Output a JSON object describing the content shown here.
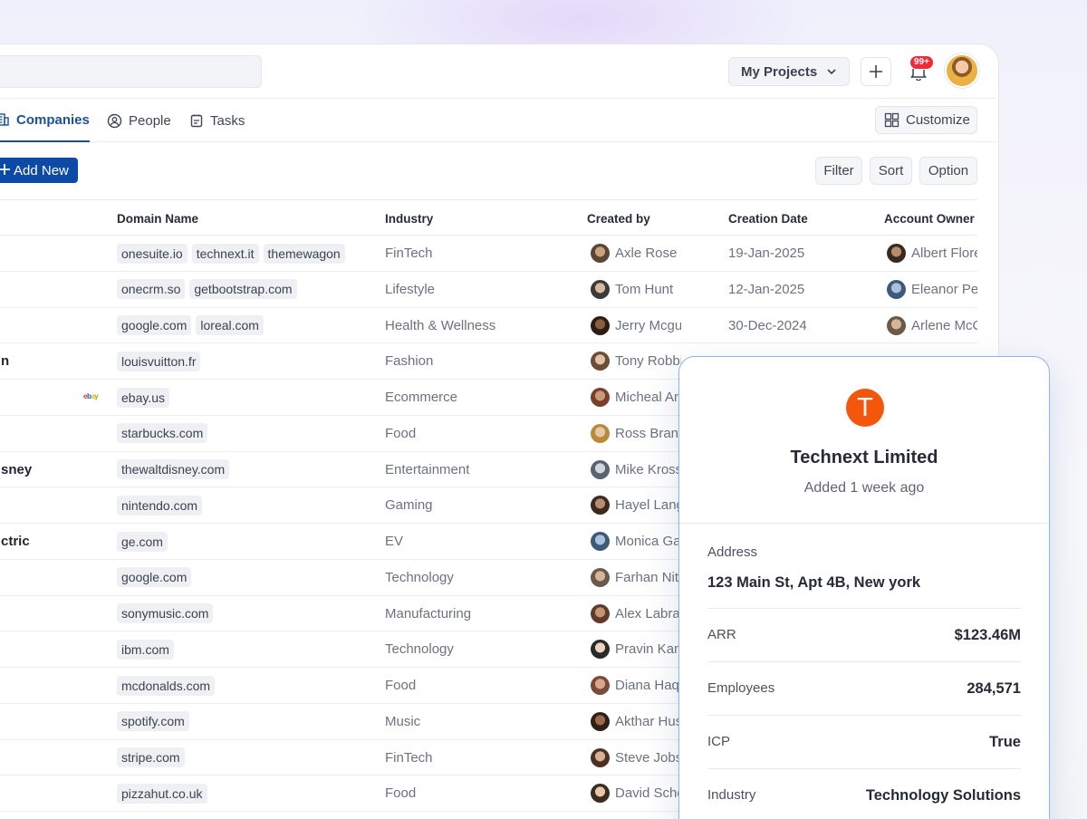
{
  "header": {
    "project_selector": "My Projects",
    "notification_count": "99+"
  },
  "tabs": [
    {
      "label": "Companies",
      "icon": "building-icon",
      "active": true
    },
    {
      "label": "People",
      "icon": "user-circle-icon",
      "active": false
    },
    {
      "label": "Tasks",
      "icon": "clipboard-icon",
      "active": false
    }
  ],
  "customize_label": "Customize",
  "add_new_label": "Add New",
  "toolbar": {
    "filter": "Filter",
    "sort": "Sort",
    "option": "Option"
  },
  "columns": {
    "domain": "Domain Name",
    "industry": "Industry",
    "created_by": "Created by",
    "creation_date": "Creation Date",
    "account_owner": "Account Owner"
  },
  "rows": [
    {
      "name": "",
      "domains": [
        "onesuite.io",
        "technext.it",
        "themewagon"
      ],
      "industry": "FinTech",
      "created_by": "Axle Rose",
      "date": "19-Jan-2025",
      "owner": "Albert Flore"
    },
    {
      "name": "",
      "domains": [
        "onecrm.so",
        "getbootstrap.com"
      ],
      "industry": "Lifestyle",
      "created_by": "Tom Hunt",
      "date": "12-Jan-2025",
      "owner": "Eleanor Per"
    },
    {
      "name": "",
      "domains": [
        "google.com",
        "loreal.com"
      ],
      "industry": "Health & Wellness",
      "created_by": "Jerry Mcguire",
      "date": "30-Dec-2024",
      "owner": "Arlene McC"
    },
    {
      "name": "n",
      "domains": [
        "louisvuitton.fr"
      ],
      "industry": "Fashion",
      "created_by": "Tony Robbins",
      "date": "",
      "owner": ""
    },
    {
      "name": "",
      "domains": [
        "ebay.us"
      ],
      "industry": "Ecommerce",
      "created_by": "Micheal An",
      "date": "",
      "owner": ""
    },
    {
      "name": "",
      "domains": [
        "starbucks.com"
      ],
      "industry": "Food",
      "created_by": "Ross Brand",
      "date": "",
      "owner": ""
    },
    {
      "name": "sney",
      "domains": [
        "thewaltdisney.com"
      ],
      "industry": "Entertainment",
      "created_by": "Mike Kross",
      "date": "",
      "owner": ""
    },
    {
      "name": "",
      "domains": [
        "nintendo.com"
      ],
      "industry": "Gaming",
      "created_by": "Hayel Lang",
      "date": "",
      "owner": ""
    },
    {
      "name": "ctric",
      "domains": [
        "ge.com"
      ],
      "industry": "EV",
      "created_by": "Monica Ga",
      "date": "",
      "owner": ""
    },
    {
      "name": "",
      "domains": [
        "google.com"
      ],
      "industry": "Technology",
      "created_by": "Farhan Nitr",
      "date": "",
      "owner": ""
    },
    {
      "name": "",
      "domains": [
        "sonymusic.com"
      ],
      "industry": "Manufacturing",
      "created_by": "Alex Labra",
      "date": "",
      "owner": ""
    },
    {
      "name": "",
      "domains": [
        "ibm.com"
      ],
      "industry": "Technology",
      "created_by": "Pravin Kam",
      "date": "",
      "owner": ""
    },
    {
      "name": "",
      "domains": [
        "mcdonalds.com"
      ],
      "industry": "Food",
      "created_by": "Diana Haqu",
      "date": "",
      "owner": ""
    },
    {
      "name": "",
      "domains": [
        "spotify.com"
      ],
      "industry": "Music",
      "created_by": "Akthar Hus",
      "date": "",
      "owner": ""
    },
    {
      "name": "",
      "domains": [
        "stripe.com"
      ],
      "industry": "FinTech",
      "created_by": "Steve Jobs",
      "date": "",
      "owner": ""
    },
    {
      "name": "",
      "domains": [
        "pizzahut.co.uk"
      ],
      "industry": "Food",
      "created_by": "David Sche",
      "date": "",
      "owner": ""
    }
  ],
  "ebay_logo": "ebay",
  "detail_card": {
    "logo_letter": "T",
    "company": "Technext Limited",
    "added": "Added 1 week ago",
    "address_label": "Address",
    "address": "123 Main St, Apt 4B, New york",
    "fields": [
      {
        "label": "ARR",
        "value": "$123.46M"
      },
      {
        "label": "Employees",
        "value": "284,571"
      },
      {
        "label": "ICP",
        "value": "True"
      },
      {
        "label": "Industry",
        "value": "Technology Solutions"
      }
    ],
    "accent_color": "#f4560b"
  }
}
